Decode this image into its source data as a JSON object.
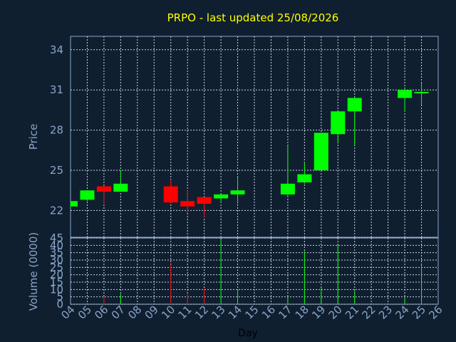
{
  "chart_data": [
    {
      "type": "candlestick",
      "title": "PRPO - last updated 25/08/2026",
      "ylabel": "Price",
      "ylim": [
        20,
        35
      ],
      "yticks": [
        22,
        25,
        28,
        31,
        34
      ],
      "grid": true,
      "x_day_range": [
        4,
        26
      ],
      "candles": [
        {
          "day": 4,
          "open": 22.3,
          "high": 22.7,
          "low": 22.3,
          "close": 22.7,
          "direction": "up"
        },
        {
          "day": 5,
          "open": 22.8,
          "high": 23.5,
          "low": 22.7,
          "close": 23.5,
          "direction": "up"
        },
        {
          "day": 6,
          "open": 23.8,
          "high": 23.8,
          "low": 22.5,
          "close": 23.4,
          "direction": "down"
        },
        {
          "day": 7,
          "open": 23.4,
          "high": 25.0,
          "low": 23.4,
          "close": 24.0,
          "direction": "up"
        },
        {
          "day": 10,
          "open": 23.8,
          "high": 24.3,
          "low": 22.5,
          "close": 22.6,
          "direction": "down"
        },
        {
          "day": 11,
          "open": 22.7,
          "high": 23.5,
          "low": 21.8,
          "close": 22.3,
          "direction": "down"
        },
        {
          "day": 12,
          "open": 23.0,
          "high": 23.0,
          "low": 21.5,
          "close": 22.5,
          "direction": "down"
        },
        {
          "day": 13,
          "open": 22.9,
          "high": 23.2,
          "low": 22.6,
          "close": 23.2,
          "direction": "up"
        },
        {
          "day": 14,
          "open": 23.2,
          "high": 24.5,
          "low": 22.5,
          "close": 23.5,
          "direction": "up"
        },
        {
          "day": 17,
          "open": 23.2,
          "high": 26.8,
          "low": 23.0,
          "close": 24.0,
          "direction": "up"
        },
        {
          "day": 18,
          "open": 24.1,
          "high": 25.6,
          "low": 24.0,
          "close": 24.7,
          "direction": "up"
        },
        {
          "day": 19,
          "open": 25.0,
          "high": 27.8,
          "low": 25.0,
          "close": 27.8,
          "direction": "up"
        },
        {
          "day": 20,
          "open": 27.7,
          "high": 29.5,
          "low": 27.0,
          "close": 29.4,
          "direction": "up"
        },
        {
          "day": 21,
          "open": 29.4,
          "high": 30.5,
          "low": 26.8,
          "close": 30.4,
          "direction": "up"
        },
        {
          "day": 24,
          "open": 30.4,
          "high": 31.2,
          "low": 29.4,
          "close": 31.0,
          "direction": "up"
        },
        {
          "day": 25,
          "open": 30.7,
          "high": 31.5,
          "low": 29.9,
          "close": 30.8,
          "direction": "up"
        }
      ]
    },
    {
      "type": "bar",
      "ylabel": "Volume (0000)",
      "xlabel": "Day",
      "ylim": [
        0,
        45
      ],
      "yticks": [
        0,
        5,
        10,
        15,
        20,
        25,
        30,
        35,
        40,
        45
      ],
      "grid": true,
      "x_tick_labels": [
        "04",
        "05",
        "06",
        "07",
        "08",
        "09",
        "10",
        "11",
        "12",
        "13",
        "14",
        "15",
        "16",
        "17",
        "18",
        "19",
        "20",
        "21",
        "22",
        "23",
        "24",
        "25",
        "26"
      ],
      "bars": [
        {
          "day": 4,
          "value": 0,
          "direction": "up"
        },
        {
          "day": 5,
          "value": 0,
          "direction": "up"
        },
        {
          "day": 6,
          "value": 5,
          "direction": "down"
        },
        {
          "day": 7,
          "value": 7,
          "direction": "up"
        },
        {
          "day": 10,
          "value": 27,
          "direction": "down"
        },
        {
          "day": 11,
          "value": 7,
          "direction": "down"
        },
        {
          "day": 12,
          "value": 11,
          "direction": "down"
        },
        {
          "day": 13,
          "value": 44,
          "direction": "up"
        },
        {
          "day": 14,
          "value": 10,
          "direction": "up"
        },
        {
          "day": 17,
          "value": 5,
          "direction": "up"
        },
        {
          "day": 18,
          "value": 36,
          "direction": "up"
        },
        {
          "day": 19,
          "value": 11,
          "direction": "up"
        },
        {
          "day": 20,
          "value": 40,
          "direction": "up"
        },
        {
          "day": 21,
          "value": 9,
          "direction": "up"
        },
        {
          "day": 24,
          "value": 4,
          "direction": "up"
        },
        {
          "day": 25,
          "value": 27,
          "direction": "up"
        }
      ]
    }
  ],
  "colors": {
    "background": "#0f1f30",
    "axis": "#8aa4c8",
    "grid": "#c8d4e4",
    "title": "#ffff00",
    "up": "#00ff00",
    "down": "#ff0000"
  }
}
